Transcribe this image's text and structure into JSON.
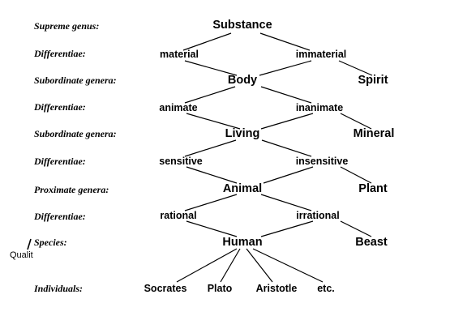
{
  "labels": {
    "supreme_genus": "Supreme genus:",
    "differentiae_1": "Differentiae:",
    "subordinate_genera_1": "Subordinate genera:",
    "differentiae_2": "Differentiae:",
    "subordinate_genera_2": "Subordinate genera:",
    "differentiae_3": "Differentiae:",
    "proximate_genera": "Proximate genera:",
    "differentiae_4": "Differentiae:",
    "species": "Species:",
    "individuals": "Individuals:"
  },
  "stray_text": "Qualit",
  "nodes": {
    "substance": "Substance",
    "material": "material",
    "immaterial": "immaterial",
    "body": "Body",
    "spirit": "Spirit",
    "animate": "animate",
    "inanimate": "inanimate",
    "living": "Living",
    "mineral": "Mineral",
    "sensitive": "sensitive",
    "insensitive": "insensitive",
    "animal": "Animal",
    "plant": "Plant",
    "rational": "rational",
    "irrational": "irrational",
    "human": "Human",
    "beast": "Beast",
    "socrates": "Socrates",
    "plato": "Plato",
    "aristotle": "Aristotle",
    "etc": "etc."
  }
}
